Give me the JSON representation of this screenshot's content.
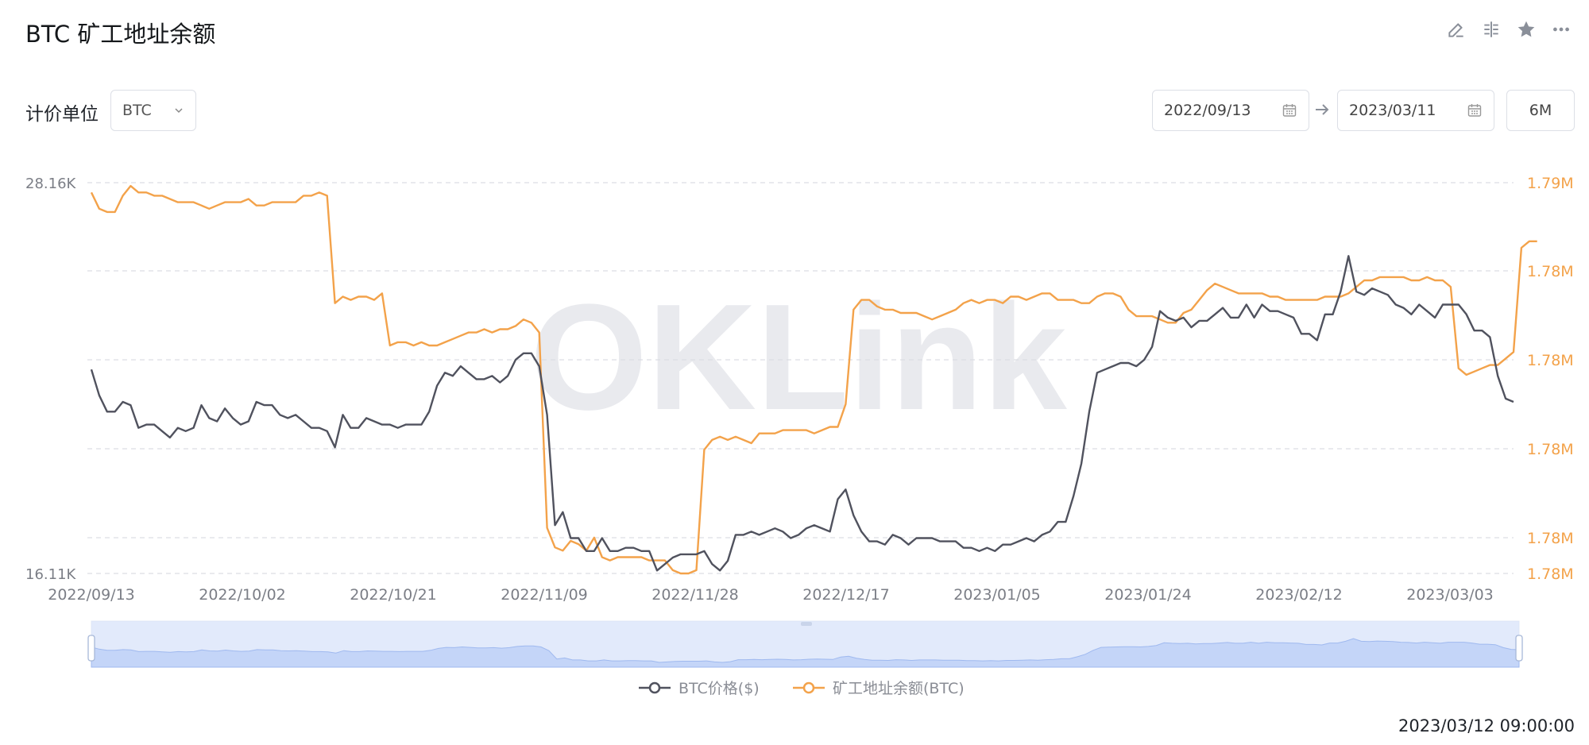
{
  "header": {
    "title": "BTC 矿工地址余额",
    "tools": [
      "edit-icon",
      "split-icon",
      "star-icon",
      "more-icon"
    ]
  },
  "controls": {
    "unit_label": "计价单位",
    "unit_value": "BTC",
    "date_start": "2022/09/13",
    "date_end": "2023/03/11",
    "range": "6M"
  },
  "footer": {
    "timestamp": "2023/03/12 09:00:00"
  },
  "watermark": "OKLink",
  "colors": {
    "price": "#50525e",
    "balance": "#f3a24a",
    "grid": "#dcdde3",
    "navigator": "#dfe8fb"
  },
  "chart_data": {
    "type": "line",
    "x_start": "2022/09/13",
    "x_end": "2023/03/11",
    "x_tick_labels": [
      "2022/09/13",
      "2022/10/02",
      "2022/10/21",
      "2022/11/09",
      "2022/11/28",
      "2022/12/17",
      "2023/01/05",
      "2023/01/24",
      "2023/02/12",
      "2023/03/03"
    ],
    "y_left": {
      "tick_labels": [
        "28.16K",
        "16.11K"
      ],
      "range": [
        16110,
        28160
      ]
    },
    "y_right": {
      "tick_labels": [
        "1.79M",
        "1.78M",
        "1.78M",
        "1.78M",
        "1.78M",
        "1.78M"
      ],
      "range": [
        1778000,
        1790000
      ]
    },
    "grid": true,
    "legend_position": "bottom",
    "series": [
      {
        "name": "BTC价格($)",
        "axis": "left",
        "values": [
          22400,
          21600,
          21100,
          21100,
          21400,
          21300,
          20600,
          20700,
          20700,
          20500,
          20300,
          20600,
          20500,
          20600,
          21300,
          20900,
          20800,
          21200,
          20900,
          20700,
          20800,
          21400,
          21300,
          21300,
          21000,
          20900,
          21000,
          20800,
          20600,
          20600,
          20500,
          20000,
          21000,
          20600,
          20600,
          20900,
          20800,
          20700,
          20700,
          20600,
          20700,
          20700,
          20700,
          21100,
          21900,
          22300,
          22200,
          22500,
          22300,
          22100,
          22100,
          22200,
          22000,
          22200,
          22700,
          22900,
          22900,
          22500,
          21000,
          17600,
          18000,
          17200,
          17200,
          16800,
          16800,
          17200,
          16800,
          16800,
          16900,
          16900,
          16800,
          16800,
          16200,
          16400,
          16600,
          16700,
          16700,
          16700,
          16800,
          16400,
          16200,
          16500,
          17300,
          17300,
          17400,
          17300,
          17400,
          17500,
          17400,
          17200,
          17300,
          17500,
          17600,
          17500,
          17400,
          18400,
          18700,
          17900,
          17400,
          17100,
          17100,
          17000,
          17300,
          17200,
          17000,
          17200,
          17200,
          17200,
          17100,
          17100,
          17100,
          16900,
          16900,
          16800,
          16900,
          16800,
          17000,
          17000,
          17100,
          17200,
          17100,
          17300,
          17400,
          17700,
          17700,
          18500,
          19500,
          21100,
          22300,
          22400,
          22500,
          22600,
          22600,
          22500,
          22700,
          23100,
          24200,
          24000,
          23900,
          24000,
          23700,
          23900,
          23900,
          24100,
          24300,
          24000,
          24000,
          24400,
          24000,
          24400,
          24200,
          24200,
          24100,
          24000,
          23500,
          23500,
          23300,
          24100,
          24100,
          24800,
          25900,
          24800,
          24700,
          24900,
          24800,
          24700,
          24400,
          24300,
          24100,
          24400,
          24200,
          24000,
          24400,
          24400,
          24400,
          24100,
          23600,
          23600,
          23400,
          22200,
          21500,
          21400
        ]
      },
      {
        "name": "矿工地址余额(BTC)",
        "axis": "right",
        "values": [
          1789700,
          1789200,
          1789100,
          1789100,
          1789600,
          1789900,
          1789700,
          1789700,
          1789600,
          1789600,
          1789500,
          1789400,
          1789400,
          1789400,
          1789300,
          1789200,
          1789300,
          1789400,
          1789400,
          1789400,
          1789500,
          1789300,
          1789300,
          1789400,
          1789400,
          1789400,
          1789400,
          1789600,
          1789600,
          1789700,
          1789600,
          1786300,
          1786500,
          1786400,
          1786500,
          1786500,
          1786400,
          1786600,
          1785000,
          1785100,
          1785100,
          1785000,
          1785100,
          1785000,
          1785000,
          1785100,
          1785200,
          1785300,
          1785400,
          1785400,
          1785500,
          1785400,
          1785500,
          1785500,
          1785600,
          1785800,
          1785700,
          1785400,
          1779400,
          1778800,
          1778700,
          1779000,
          1778900,
          1778700,
          1779100,
          1778500,
          1778400,
          1778500,
          1778500,
          1778500,
          1778500,
          1778400,
          1778400,
          1778400,
          1778100,
          1778000,
          1778000,
          1778100,
          1781800,
          1782100,
          1782200,
          1782100,
          1782200,
          1782100,
          1782000,
          1782300,
          1782300,
          1782300,
          1782400,
          1782400,
          1782400,
          1782400,
          1782300,
          1782400,
          1782500,
          1782500,
          1783200,
          1786100,
          1786400,
          1786400,
          1786200,
          1786100,
          1786100,
          1786000,
          1786000,
          1786000,
          1785900,
          1785800,
          1785900,
          1786000,
          1786100,
          1786300,
          1786400,
          1786300,
          1786400,
          1786400,
          1786300,
          1786500,
          1786500,
          1786400,
          1786500,
          1786600,
          1786600,
          1786400,
          1786400,
          1786400,
          1786300,
          1786300,
          1786500,
          1786600,
          1786600,
          1786500,
          1786100,
          1785900,
          1785900,
          1785900,
          1785800,
          1785700,
          1785700,
          1786000,
          1786100,
          1786400,
          1786700,
          1786900,
          1786800,
          1786700,
          1786600,
          1786600,
          1786600,
          1786600,
          1786500,
          1786500,
          1786400,
          1786400,
          1786400,
          1786400,
          1786400,
          1786500,
          1786500,
          1786500,
          1786600,
          1786800,
          1787000,
          1787000,
          1787100,
          1787100,
          1787100,
          1787100,
          1787000,
          1787000,
          1787100,
          1787000,
          1787000,
          1786800,
          1784300,
          1784100,
          1784200,
          1784300,
          1784400,
          1784400,
          1784600,
          1784800,
          1788000,
          1788200,
          1788200
        ]
      }
    ]
  }
}
